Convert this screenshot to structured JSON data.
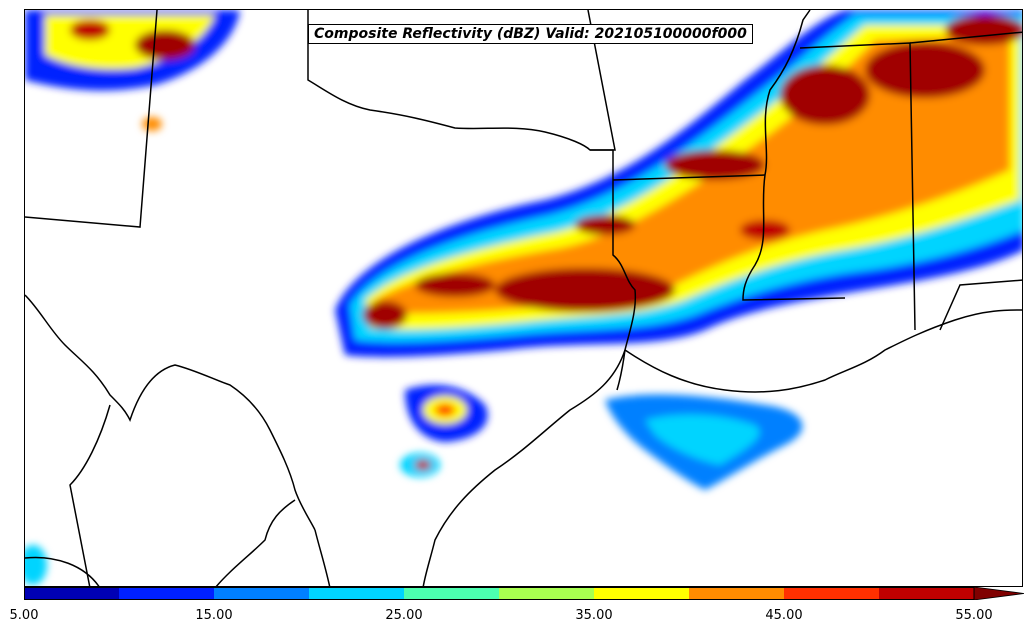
{
  "title": "Composite Reflectivity (dBZ) Valid: 202105100000f000",
  "colorbar": {
    "tick_labels": [
      "5.00",
      "15.00",
      "25.00",
      "35.00",
      "45.00",
      "55.00"
    ],
    "colors": [
      "#0000b4",
      "#0020ff",
      "#0080ff",
      "#00d4ff",
      "#4cffb0",
      "#a8ff50",
      "#ffff00",
      "#ff8c00",
      "#ff3000",
      "#c00000",
      "#800000"
    ],
    "min": 5,
    "max": 55,
    "extend": "max"
  },
  "colors": {
    "boundary": "#000000",
    "background": "#ffffff"
  }
}
